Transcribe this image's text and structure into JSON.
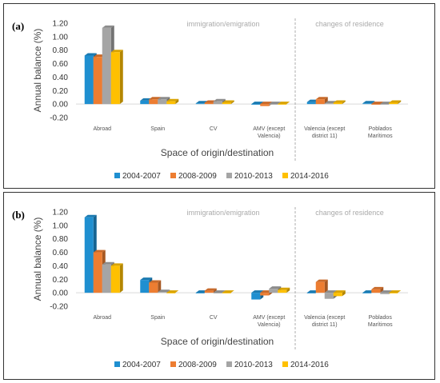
{
  "panels": [
    {
      "label": "(a)",
      "annotations": {
        "left": "immigration/emigration",
        "right": "changes of residence"
      }
    },
    {
      "label": "(b)",
      "annotations": {
        "left": "immigration/emigration",
        "right": "changes of residence"
      }
    }
  ],
  "colors": {
    "2004-2007": "#1f8fd0",
    "2008-2009": "#ed7d31",
    "2010-2013": "#a5a5a5",
    "2014-2016": "#ffc000"
  },
  "chart_data": [
    {
      "type": "bar",
      "title": "",
      "xlabel": "Space of origin/destination",
      "ylabel": "Annual balance (%)",
      "ylim": [
        -0.2,
        1.2
      ],
      "yticks": [
        "1.20",
        "1.00",
        "0.80",
        "0.60",
        "0.40",
        "0.20",
        "0.00",
        "-0.20"
      ],
      "categories": [
        [
          "Abroad"
        ],
        [
          "Spain"
        ],
        [
          "CV"
        ],
        [
          "AMV (except",
          "Valencia)"
        ],
        [
          "Valencia (except",
          "district 11)"
        ],
        [
          "Poblados",
          "Marítimos"
        ]
      ],
      "series": [
        {
          "name": "2004-2007",
          "values": [
            0.72,
            0.05,
            0.01,
            -0.01,
            0.03,
            0.01
          ]
        },
        {
          "name": "2008-2009",
          "values": [
            0.7,
            0.07,
            0.02,
            -0.03,
            0.07,
            -0.01
          ]
        },
        {
          "name": "2010-2013",
          "values": [
            1.13,
            0.07,
            0.04,
            0.0,
            0.01,
            0.0
          ]
        },
        {
          "name": "2014-2016",
          "values": [
            0.77,
            0.04,
            0.02,
            0.0,
            0.02,
            0.02
          ]
        }
      ],
      "legend": "bottom",
      "grid": false
    },
    {
      "type": "bar",
      "title": "",
      "xlabel": "Space of origin/destination",
      "ylabel": "Annual balance (%)",
      "ylim": [
        -0.2,
        1.2
      ],
      "yticks": [
        "1.20",
        "1.00",
        "0.80",
        "0.60",
        "0.40",
        "0.20",
        "0.00",
        "-0.20"
      ],
      "categories": [
        [
          "Abroad"
        ],
        [
          "Spain"
        ],
        [
          "CV"
        ],
        [
          "AMV (except",
          "Valencia)"
        ],
        [
          "Valencia (except",
          "district 11)"
        ],
        [
          "Poblados",
          "Marítimos"
        ]
      ],
      "series": [
        {
          "name": "2004-2007",
          "values": [
            1.12,
            0.19,
            0.0,
            -0.1,
            0.0,
            0.0
          ]
        },
        {
          "name": "2008-2009",
          "values": [
            0.6,
            0.15,
            0.03,
            -0.04,
            0.16,
            0.05
          ]
        },
        {
          "name": "2010-2013",
          "values": [
            0.42,
            0.01,
            0.0,
            0.06,
            -0.09,
            -0.02
          ]
        },
        {
          "name": "2014-2016",
          "values": [
            0.4,
            0.0,
            0.0,
            0.04,
            -0.05,
            0.0
          ]
        }
      ],
      "legend": "bottom",
      "grid": false
    }
  ]
}
